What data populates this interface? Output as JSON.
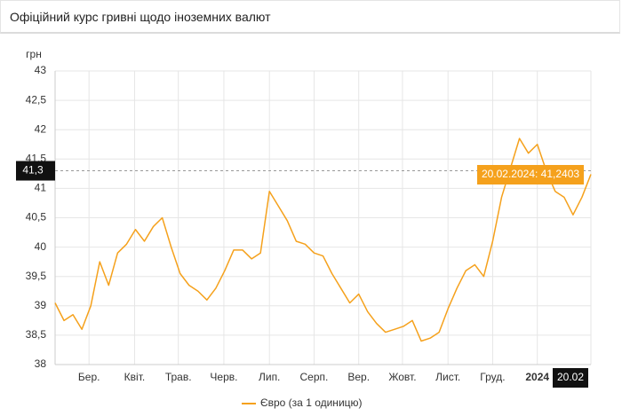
{
  "header": {
    "title": "Офіційний курс гривні щодо іноземних валют"
  },
  "chart_data": {
    "type": "line",
    "y_label": "грн",
    "series": [
      {
        "name": "Євро (за 1 одиницю)",
        "color": "#f5a11c",
        "values": [
          39.05,
          38.75,
          38.85,
          38.6,
          39.0,
          39.75,
          39.35,
          39.9,
          40.05,
          40.3,
          40.1,
          40.35,
          40.5,
          40.0,
          39.55,
          39.35,
          39.25,
          39.1,
          39.3,
          39.6,
          39.95,
          39.95,
          39.8,
          39.9,
          40.95,
          40.7,
          40.45,
          40.1,
          40.05,
          39.9,
          39.85,
          39.55,
          39.3,
          39.05,
          39.2,
          38.9,
          38.7,
          38.55,
          38.6,
          38.65,
          38.75,
          38.4,
          38.45,
          38.55,
          38.95,
          39.3,
          39.6,
          39.7,
          39.5,
          40.1,
          40.85,
          41.35,
          41.85,
          41.6,
          41.75,
          41.3,
          40.95,
          40.85,
          40.55,
          40.85,
          41.2403
        ]
      }
    ],
    "xlim": [
      0,
      60
    ],
    "xticks": [
      {
        "value": 3.8,
        "label": "Бер."
      },
      {
        "value": 8.9,
        "label": "Квіт."
      },
      {
        "value": 13.8,
        "label": "Трав."
      },
      {
        "value": 18.9,
        "label": "Черв."
      },
      {
        "value": 24.0,
        "label": "Лип."
      },
      {
        "value": 29.0,
        "label": "Серп."
      },
      {
        "value": 34.0,
        "label": "Вер."
      },
      {
        "value": 38.9,
        "label": "Жовт."
      },
      {
        "value": 44.0,
        "label": "Лист."
      },
      {
        "value": 49.0,
        "label": "Груд."
      },
      {
        "value": 54.0,
        "label": "2024"
      }
    ],
    "ylim": [
      38,
      43
    ],
    "yticks": [
      38,
      {
        "value": 38.5,
        "label": "38,5"
      },
      39,
      {
        "value": 39.5,
        "label": "39,5"
      },
      40,
      {
        "value": 40.5,
        "label": "40,5"
      },
      41,
      {
        "value": 41.5,
        "label": "41,5"
      },
      42,
      {
        "value": 42.5,
        "label": "42,5"
      },
      43
    ],
    "grid": true,
    "crosshair": {
      "y": {
        "value": 41.3,
        "label": "41,3"
      },
      "x": {
        "value": 60,
        "label": "20.02"
      },
      "tooltip": "20.02.2024: 41,2403"
    },
    "legend": "bottom"
  }
}
